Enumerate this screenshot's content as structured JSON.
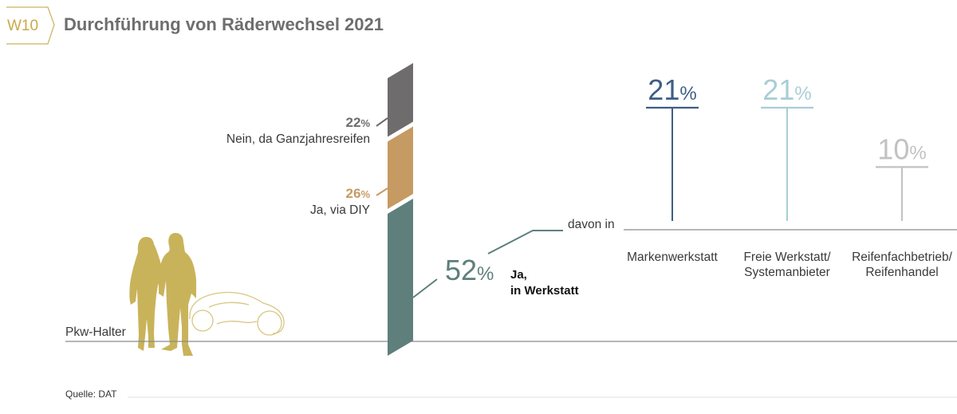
{
  "header": {
    "badge": "W10",
    "title": "Durchführung von Räderwechsel 2021"
  },
  "chart_data": [
    {
      "type": "bar",
      "stacked": true,
      "categories": [
        "Pkw-Halter"
      ],
      "series": [
        {
          "name": "Ja, in Werkstatt",
          "values": [
            52
          ],
          "color": "#5e7f7c"
        },
        {
          "name": "Ja, via DIY",
          "values": [
            26
          ],
          "color": "#c69a63"
        },
        {
          "name": "Nein, da Ganzjahresreifen",
          "values": [
            22
          ],
          "color": "#6e6c6c"
        }
      ]
    },
    {
      "type": "bar",
      "group_label": "davon in",
      "categories": [
        "Markenwerkstatt",
        "Freie Werkstatt/ Systemanbieter",
        "Reifenfachbetrieb/ Reifenhandel"
      ],
      "values": [
        21,
        21,
        10
      ],
      "colors": [
        "#3e5e86",
        "#a9cdd6",
        "#c2c2c2"
      ]
    }
  ],
  "labels": {
    "pct_sign": "%",
    "stack": {
      "nein_value": "22",
      "nein_line1": "Nein, da Ganzjahresreifen",
      "diy_value": "26",
      "diy_line1": "Ja, via DIY",
      "werk_value": "52",
      "werk_line1": "Ja,",
      "werk_line2": "in Werkstatt"
    },
    "davon_in": "davon in",
    "columns": [
      {
        "value": "21",
        "line1": "Markenwerkstatt",
        "line2": ""
      },
      {
        "value": "21",
        "line1": "Freie Werkstatt/",
        "line2": "Systemanbieter"
      },
      {
        "value": "10",
        "line1": "Reifenfachbetrieb/",
        "line2": "Reifenhandel"
      }
    ],
    "baseline_label": "Pkw-Halter"
  },
  "source": "Quelle: DAT",
  "colors": {
    "werkstatt": "#5e7f7c",
    "diy": "#c69a63",
    "nein": "#6e6c6c",
    "gold": "#c9b35a",
    "markenwerkstatt": "#3e5e86",
    "freie_werkstatt": "#a9cdd6",
    "reifenfach": "#c2c2c2"
  }
}
